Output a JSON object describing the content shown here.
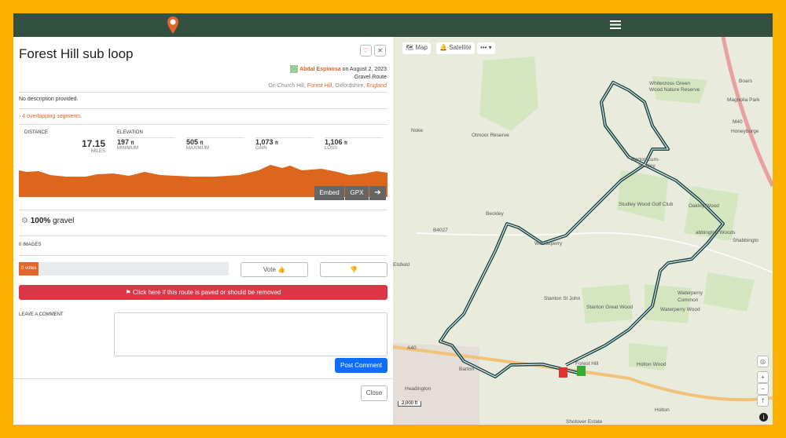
{
  "route": {
    "title": "Forest Hill sub loop",
    "author": "Abdal Espinosa",
    "date_text": "on August 2, 2023",
    "route_type": "Gravel Route",
    "location_prefix": "On Church Hill,",
    "location_link": "Forest Hill",
    "location_mid": ", Oxfordshire,",
    "location_link2": "England",
    "description": "No description provided.",
    "overlap": "4 overlapping segments."
  },
  "stats": {
    "distance_label": "DISTANCE",
    "distance": "17.15",
    "distance_unit": "MILES",
    "elevation_label": "ELEVATION",
    "items": [
      {
        "value": "197",
        "unit": "ft",
        "label": "MINIMUM"
      },
      {
        "value": "505",
        "unit": "ft",
        "label": "MAXIMUM"
      },
      {
        "value": "1,073",
        "unit": "ft",
        "label": "GAIN"
      },
      {
        "value": "1,106",
        "unit": "ft",
        "label": "LOSS"
      }
    ]
  },
  "buttons": {
    "embed": "Embed",
    "gpx": "GPX"
  },
  "surface": {
    "percent": "100%",
    "label": "gravel"
  },
  "images": "0 IMAGES",
  "votes": "0 votes",
  "vote": "Vote",
  "report": "Click here if this route is paved or should be removed",
  "comment_label": "LEAVE A COMMENT",
  "post": "Post Comment",
  "close": "Close",
  "map": {
    "controls": [
      "Map",
      "Satellite"
    ],
    "scale": "2,000 ft",
    "labels": [
      "Whitecross Green",
      "Wood Nature Reserve",
      "Otmoor Reserve",
      "Noke",
      "Horton-cum-",
      "Studley",
      "Studley Wood Golf Club",
      "Oakley Wood",
      "abbington Woods",
      "Shabbingto",
      "Beckley",
      "Woodeperry",
      "Elsfield",
      "Stanton St John",
      "Stanton Great Wood",
      "Waterperry Wood",
      "Waterperry",
      "Common",
      "Forest Hill",
      "Holton Wood",
      "Holton",
      "Headington",
      "Barton",
      "Shotover Estate",
      "Boars",
      "Magnolia Park",
      "Honeyburge",
      "B4027",
      "A40",
      "M40"
    ]
  }
}
